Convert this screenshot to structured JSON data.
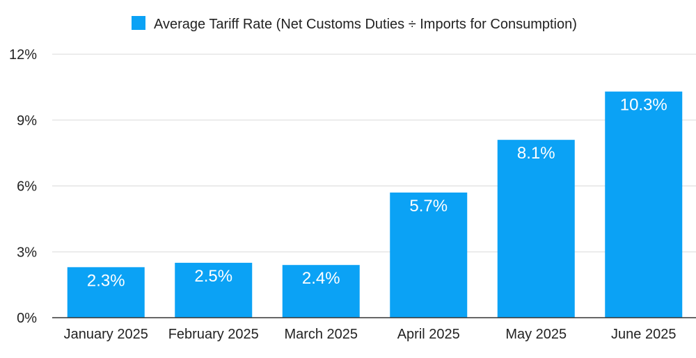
{
  "chart_data": {
    "type": "bar",
    "title": "",
    "xlabel": "",
    "ylabel": "",
    "categories": [
      "January 2025",
      "February 2025",
      "March 2025",
      "April 2025",
      "May 2025",
      "June 2025"
    ],
    "series": [
      {
        "name": "Average Tariff Rate (Net Customs Duties ÷ Imports for Consumption)",
        "values": [
          2.3,
          2.5,
          2.4,
          5.7,
          8.1,
          10.3
        ],
        "labels": [
          "2.3%",
          "2.5%",
          "2.4%",
          "5.7%",
          "8.1%",
          "10.3%"
        ],
        "color": "#0BA2F5"
      }
    ],
    "ylim": [
      0,
      12
    ],
    "yticks": [
      0,
      3,
      6,
      9,
      12
    ],
    "ytick_labels": [
      "0%",
      "3%",
      "6%",
      "9%",
      "12%"
    ],
    "grid": true,
    "legend_position": "top-center",
    "colors": {
      "bar": "#0BA2F5",
      "grid": "#d9d9d9",
      "axis": "#333333"
    }
  }
}
